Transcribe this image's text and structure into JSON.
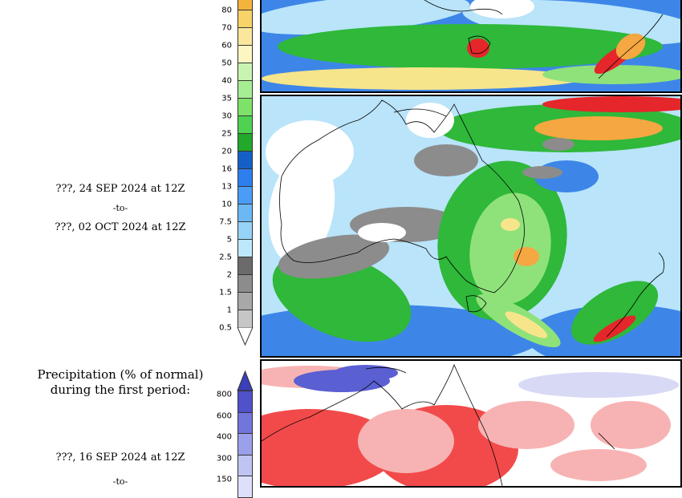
{
  "precip_scale": {
    "labels": [
      "80",
      "70",
      "60",
      "50",
      "40",
      "35",
      "30",
      "25",
      "20",
      "16",
      "13",
      "10",
      "7.5",
      "5",
      "2.5",
      "2",
      "1.5",
      "1",
      "0.5"
    ],
    "colors": [
      "#f4b43c",
      "#f7d36a",
      "#fbe79b",
      "#fdf6c2",
      "#c9f3b0",
      "#a6ee93",
      "#7ee26a",
      "#4fd152",
      "#22a82a",
      "#1560c7",
      "#2d7ff0",
      "#4a9cf4",
      "#6cb8f5",
      "#95d3f7",
      "#bde8fb",
      "#6b6b6b",
      "#8c8c8c",
      "#a8a8a8",
      "#c6c6c6"
    ],
    "overflow_color": "#ffffff"
  },
  "second_period": {
    "start": "???, 24 SEP 2024 at 12Z",
    "connector": "-to-",
    "end": "???, 02 OCT 2024 at 12Z"
  },
  "percent_section": {
    "title_line1": "Precipitation (% of normal)",
    "title_line2": "during the first period:",
    "start": "???, 16 SEP 2024 at 12Z",
    "connector": "-to-",
    "scale_labels": [
      "800",
      "600",
      "400",
      "300",
      "150"
    ],
    "scale_colors": [
      "#4f52c9",
      "#7276db",
      "#9aa0ea",
      "#bfc4f3",
      "#dee0fa"
    ],
    "top_arrow_color": "#3c3fb8"
  },
  "map_colors": {
    "land_dry": "#ffffff",
    "grey_low": "#8c8c8c",
    "light_blue": "#b9e4fa",
    "blue": "#3d86e8",
    "green": "#2fb83a",
    "light_green": "#8fe27a",
    "yellow": "#f7e58c",
    "orange": "#f5a742",
    "red": "#e5262a",
    "pct_red": "#f24a4a",
    "pct_pink": "#f7b3b3",
    "pct_blue": "#5a5fd2"
  }
}
